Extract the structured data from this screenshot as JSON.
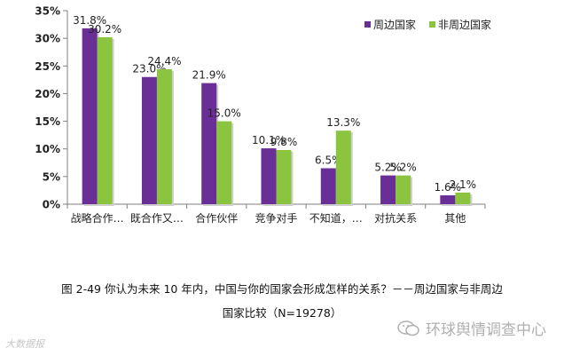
{
  "chart_data": {
    "type": "bar",
    "categories": [
      "战略合作…",
      "既合作又…",
      "合作伙伴",
      "竞争对手",
      "不知道，…",
      "对抗关系",
      "其他"
    ],
    "series": [
      {
        "name": "周边国家",
        "values": [
          31.8,
          23.0,
          21.9,
          10.1,
          6.5,
          5.2,
          1.6
        ],
        "labels": [
          "31.8%",
          "23.0%",
          "21.9%",
          "10.1%",
          "6.5%",
          "5.2%",
          "1.6%"
        ],
        "color": "#6a2e97"
      },
      {
        "name": "非周边国家",
        "values": [
          30.2,
          24.4,
          15.0,
          9.8,
          13.3,
          5.2,
          2.1
        ],
        "labels": [
          "30.2%",
          "24.4%",
          "15.0%",
          "9.8%",
          "13.3%",
          "5.2%",
          "2.1%"
        ],
        "color": "#8bc53f"
      }
    ],
    "ylim": [
      0,
      35
    ],
    "yticks": [
      0,
      5,
      10,
      15,
      20,
      25,
      30,
      35
    ],
    "ytick_labels": [
      "0%",
      "5%",
      "10%",
      "15%",
      "20%",
      "25%",
      "30%",
      "35%"
    ],
    "legend_position": "top-right",
    "grid": false
  },
  "caption": {
    "line1": "图 2-49   你认为未来 10 年内，中国与你的国家会形成怎样的关系？－－周边国家与非周边",
    "line2": "国家比较（N=19278）"
  },
  "watermark": {
    "left": "大数据报",
    "right": "环球舆情调查中心"
  }
}
